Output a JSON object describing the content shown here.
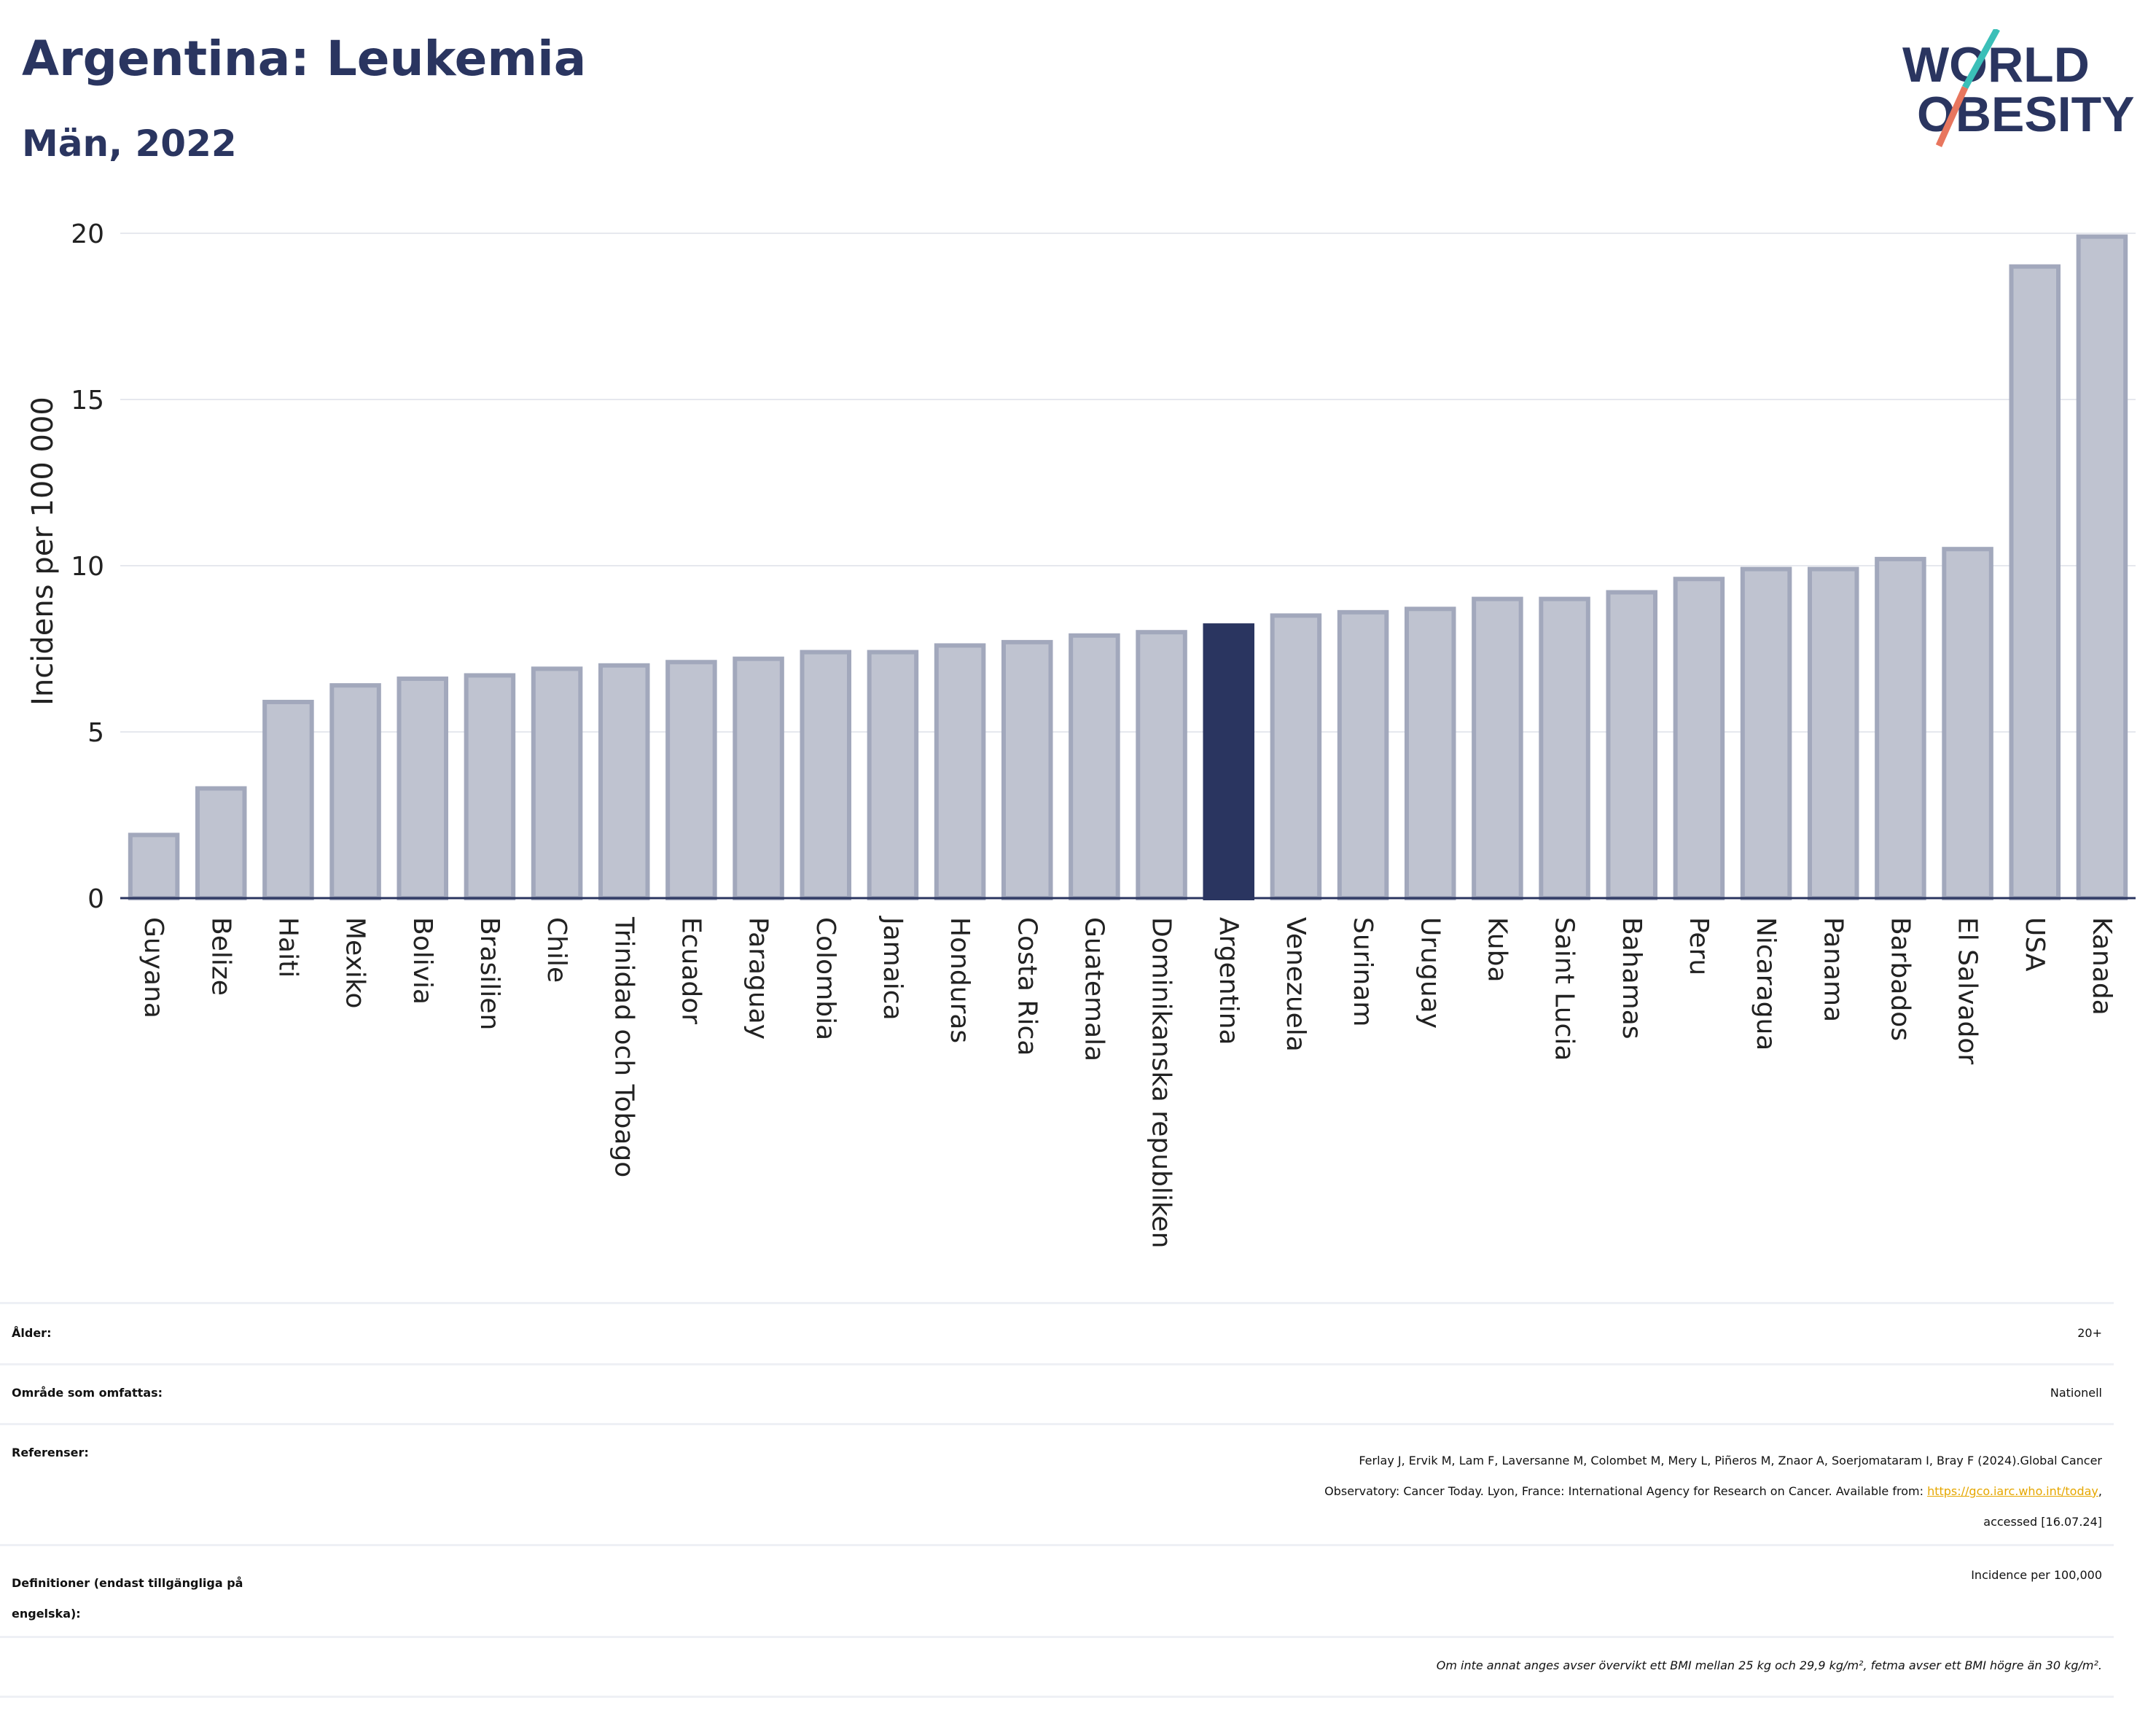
{
  "title": "Argentina: Leukemia",
  "subtitle": "Män, 2022",
  "logo": {
    "line1": "WORLD",
    "line2": "OBESITY"
  },
  "colors": {
    "bar": "#bfc3d0",
    "bar_border": "#a2a8bc",
    "highlight": "#2a3560",
    "text": "#2a3560",
    "grid": "#e6e8ee"
  },
  "chart_data": {
    "type": "bar",
    "ylabel": "Incidens per 100 000",
    "ylim": [
      0,
      20
    ],
    "yticks": [
      0,
      5,
      10,
      15,
      20
    ],
    "highlight": "Argentina",
    "categories": [
      "Guyana",
      "Belize",
      "Haiti",
      "Mexiko",
      "Bolivia",
      "Brasilien",
      "Chile",
      "Trinidad och Tobago",
      "Ecuador",
      "Paraguay",
      "Colombia",
      "Jamaica",
      "Honduras",
      "Costa Rica",
      "Guatemala",
      "Dominikanska republiken",
      "Argentina",
      "Venezuela",
      "Surinam",
      "Uruguay",
      "Kuba",
      "Saint Lucia",
      "Bahamas",
      "Peru",
      "Nicaragua",
      "Panama",
      "Barbados",
      "El Salvador",
      "USA",
      "Kanada"
    ],
    "values": [
      1.9,
      3.3,
      5.9,
      6.4,
      6.6,
      6.7,
      6.9,
      7.0,
      7.1,
      7.2,
      7.4,
      7.4,
      7.6,
      7.7,
      7.9,
      8.0,
      8.2,
      8.5,
      8.6,
      8.7,
      9.0,
      9.0,
      9.2,
      9.6,
      9.9,
      9.9,
      10.2,
      10.5,
      19.0,
      19.9
    ]
  },
  "info": {
    "age_label": "Ålder:",
    "age_value": "20+",
    "area_label": "Område som omfattas:",
    "area_value": "Nationell",
    "ref_label": "Referenser:",
    "ref_line1": "Ferlay J, Ervik M, Lam F, Laversanne M, Colombet M, Mery L, Piñeros M, Znaor A, Soerjomataram I, Bray F (2024).Global Cancer",
    "ref_line2": "Observatory: Cancer Today. Lyon, France: International Agency for Research on Cancer. Available from: ",
    "ref_link": "https://gco.iarc.who.int/today",
    "ref_line2_end": ",",
    "ref_line3": "accessed [16.07.24]",
    "def_label_1": "Definitioner (endast tillgängliga på",
    "def_label_2": "engelska):",
    "def_value": "Incidence per 100,000",
    "footnote": "Om inte annat anges avser övervikt ett BMI mellan 25 kg och 29,9 kg/m², fetma avser ett BMI högre än 30 kg/m²."
  }
}
